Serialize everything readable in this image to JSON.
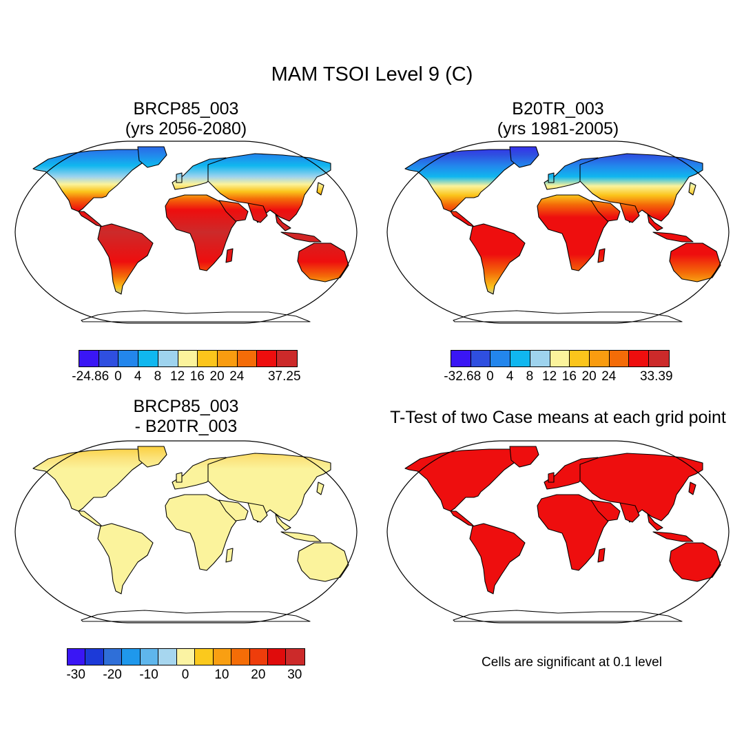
{
  "title": "MAM TSOI Level 9 (C)",
  "panels": [
    {
      "title_line1": "BRCP85_003",
      "title_line2": "(yrs 2056-2080)",
      "fill": "climate"
    },
    {
      "title_line1": "B20TR_003",
      "title_line2": "(yrs 1981-2005)",
      "fill": "climate_cold"
    },
    {
      "title_line1": "BRCP85_003",
      "title_line2": "- B20TR_003",
      "fill": "diff"
    },
    {
      "title_line1": "T-Test of two Case means at each grid point",
      "title_line2": "",
      "fill": "ttest"
    }
  ],
  "colorbars": [
    {
      "colors": [
        "#3a16f5",
        "#2f4fe0",
        "#2386ec",
        "#10b7ef",
        "#9ed3ee",
        "#fbf39c",
        "#fbc51c",
        "#f99c10",
        "#f46c08",
        "#ee0e0e",
        "#cc2a2a"
      ],
      "ticks": [
        "-24.86",
        "0",
        "4",
        "8",
        "12",
        "16",
        "20",
        "24",
        "37.25"
      ]
    },
    {
      "colors": [
        "#3a16f5",
        "#2f4fe0",
        "#2386ec",
        "#10b7ef",
        "#9ed3ee",
        "#fbf39c",
        "#fbc51c",
        "#f99c10",
        "#f46c08",
        "#ee0e0e",
        "#cc2a2a"
      ],
      "ticks": [
        "-32.68",
        "0",
        "4",
        "8",
        "12",
        "16",
        "20",
        "24",
        "33.39"
      ]
    },
    {
      "colors": [
        "#3a16f5",
        "#1c3ad8",
        "#2f6fd8",
        "#1f98ec",
        "#5fb6ec",
        "#a7d6ef",
        "#fbf3a3",
        "#fbc91d",
        "#f99f12",
        "#f46d07",
        "#ee3d0b",
        "#e00c0c",
        "#cc2a2a"
      ],
      "ticks": [
        "-30",
        "-20",
        "-10",
        "0",
        "10",
        "20",
        "30"
      ]
    }
  ],
  "note": "Cells are significant at 0.1 level"
}
